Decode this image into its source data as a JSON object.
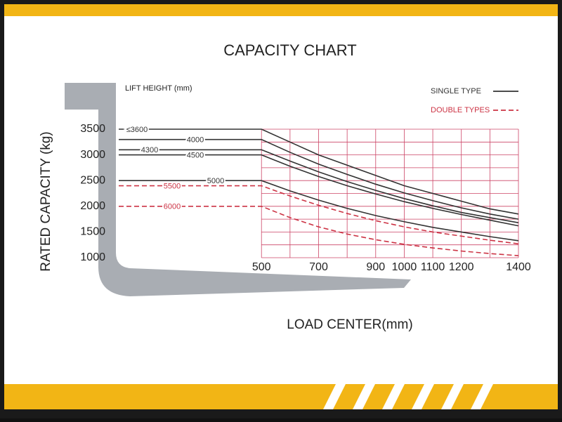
{
  "chart_data": {
    "type": "line",
    "title": "CAPACITY CHART",
    "subtitle": "LIFT HEIGHT (mm)",
    "y_label": "RATED CAPACITY (kg)",
    "x_label": "LOAD CENTER(mm)",
    "xlim": [
      0,
      1400
    ],
    "ylim": [
      1000,
      3500
    ],
    "xticks": [
      500,
      700,
      900,
      1000,
      1100,
      1200,
      1400
    ],
    "yticks": [
      1000,
      1500,
      2000,
      2500,
      3000,
      3500
    ],
    "xgrid": [
      500,
      600,
      700,
      800,
      900,
      1000,
      1100,
      1200,
      1300,
      1400
    ],
    "ygrid": [
      1000,
      1250,
      1500,
      1750,
      2000,
      2250,
      2500,
      2750,
      3000,
      3250,
      3500
    ],
    "grid_color": "#cc4466",
    "x": [
      0,
      500,
      600,
      700,
      800,
      900,
      1000,
      1100,
      1200,
      1300,
      1400
    ],
    "legend": [
      {
        "name": "SINGLE TYPE",
        "color": "#333333",
        "dashed": false
      },
      {
        "name": "DOUBLE TYPES",
        "color": "#cc3344",
        "dashed": true
      }
    ],
    "series": [
      {
        "name": "≤3600",
        "color": "#333333",
        "dashed": false,
        "values": [
          3500,
          3500,
          3250,
          3000,
          2800,
          2600,
          2400,
          2250,
          2100,
          1950,
          1850
        ]
      },
      {
        "name": "4000",
        "color": "#333333",
        "dashed": false,
        "values": [
          3300,
          3300,
          3050,
          2820,
          2620,
          2430,
          2260,
          2110,
          1970,
          1850,
          1750
        ]
      },
      {
        "name": "4300",
        "color": "#333333",
        "dashed": false,
        "values": [
          3100,
          3100,
          2880,
          2670,
          2480,
          2310,
          2150,
          2010,
          1880,
          1780,
          1680
        ]
      },
      {
        "name": "4500",
        "color": "#333333",
        "dashed": false,
        "values": [
          3000,
          3000,
          2780,
          2580,
          2400,
          2240,
          2090,
          1960,
          1840,
          1730,
          1620
        ]
      },
      {
        "name": "5000",
        "color": "#333333",
        "dashed": false,
        "values": [
          2500,
          2500,
          2300,
          2120,
          1960,
          1820,
          1700,
          1590,
          1500,
          1410,
          1330
        ]
      },
      {
        "name": "5500",
        "color": "#cc3344",
        "dashed": true,
        "values": [
          2400,
          2400,
          2200,
          2020,
          1860,
          1720,
          1600,
          1500,
          1420,
          1340,
          1270
        ]
      },
      {
        "name": "6000",
        "color": "#cc3344",
        "dashed": true,
        "values": [
          2000,
          2000,
          1780,
          1600,
          1460,
          1350,
          1260,
          1190,
          1130,
          1080,
          1040
        ]
      }
    ]
  }
}
